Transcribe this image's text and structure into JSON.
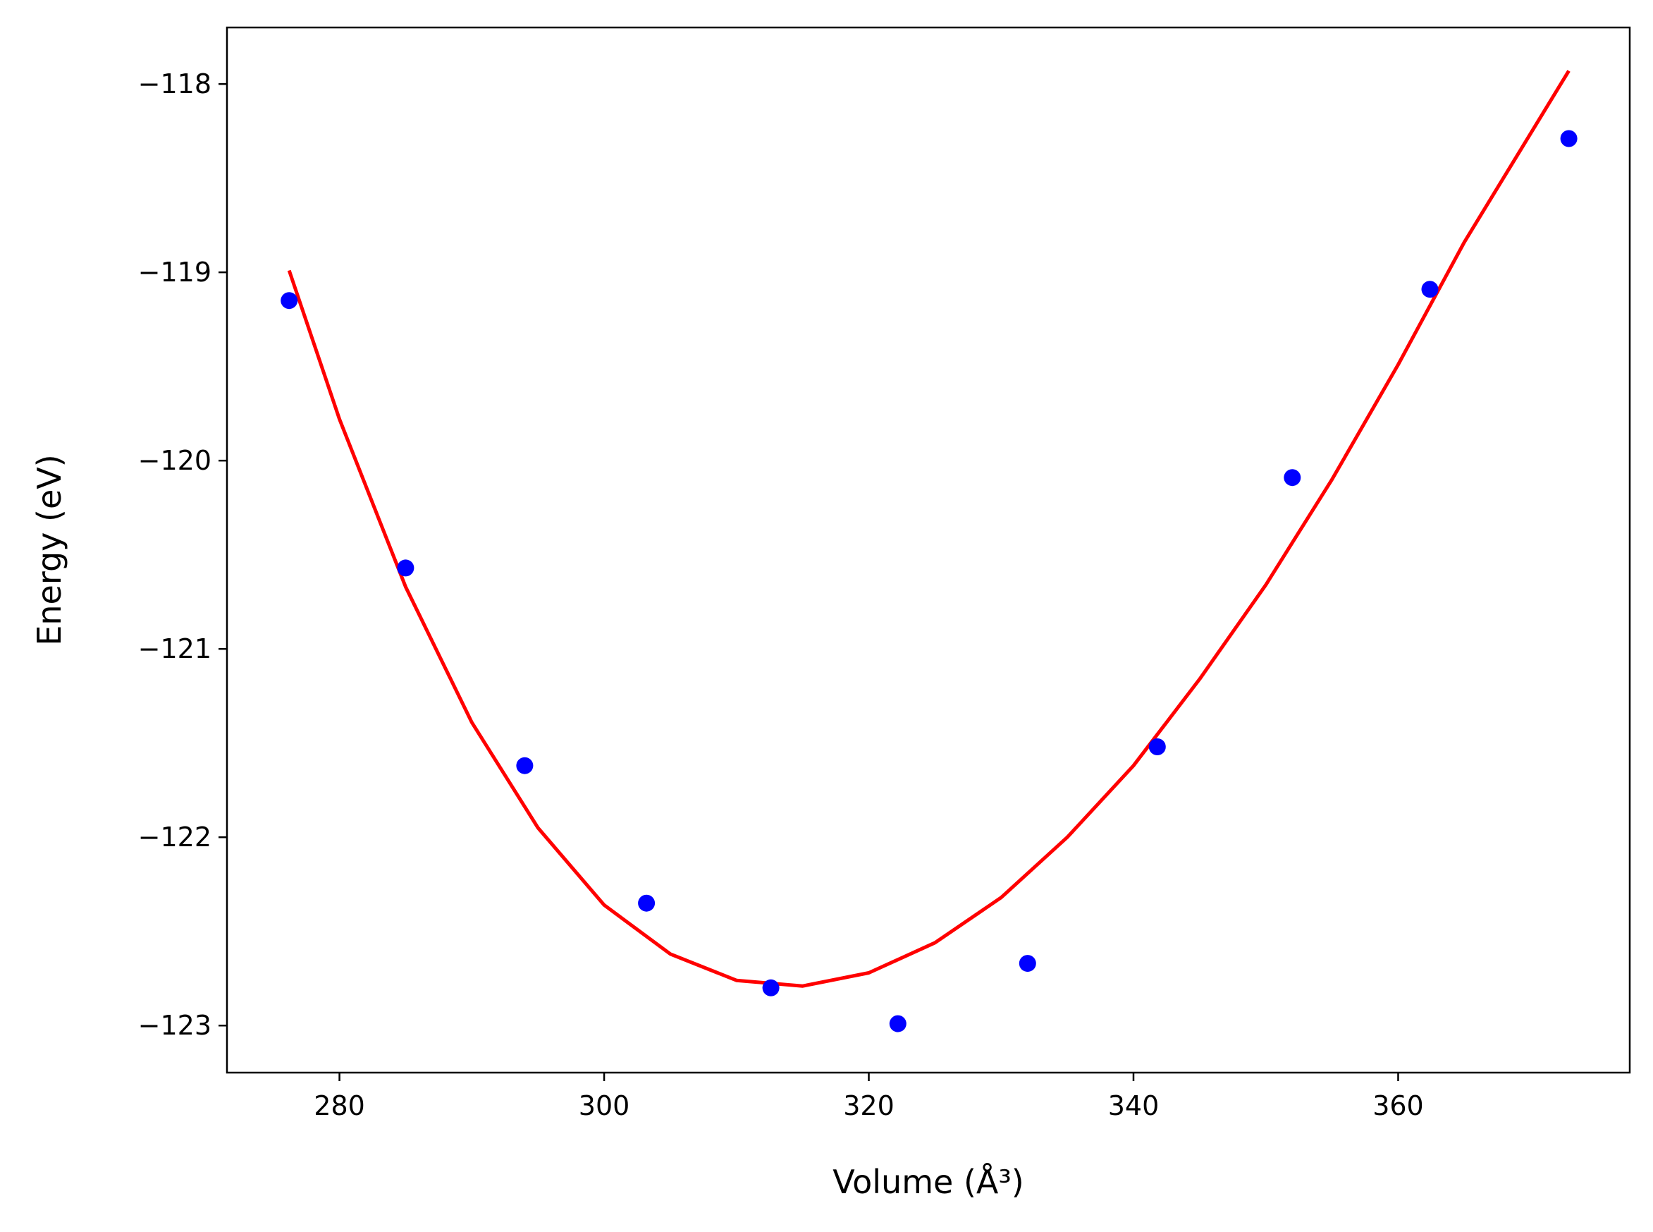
{
  "chart_data": {
    "type": "scatter",
    "xlabel": "Volume (Å³)",
    "ylabel": "Energy (eV)",
    "xlim": [
      271.5,
      377.5
    ],
    "ylim": [
      -123.25,
      -117.7
    ],
    "xticks": [
      280,
      300,
      320,
      340,
      360
    ],
    "yticks": [
      -118,
      -119,
      -120,
      -121,
      -122,
      -123
    ],
    "xtick_labels": [
      "280",
      "300",
      "320",
      "340",
      "360"
    ],
    "ytick_labels": [
      "−118",
      "−119",
      "−120",
      "−121",
      "−122",
      "−123"
    ],
    "grid": false,
    "series": [
      {
        "kind": "points",
        "color": "#0000ff",
        "x": [
          276.2,
          285.0,
          294.0,
          303.2,
          312.6,
          322.2,
          332.0,
          341.8,
          352.0,
          362.4,
          372.9
        ],
        "y": [
          -119.15,
          -120.57,
          -121.62,
          -122.35,
          -122.8,
          -122.99,
          -122.67,
          -121.52,
          -120.09,
          -119.09,
          -118.29
        ]
      },
      {
        "kind": "fit-curve",
        "color": "#ff0000",
        "x": [
          276.2,
          280,
          285,
          290,
          295,
          300,
          305,
          310,
          315,
          320,
          325,
          330,
          335,
          340,
          345,
          350,
          355,
          360,
          365,
          372.9
        ],
        "y": [
          -118.99,
          -119.78,
          -120.67,
          -121.39,
          -121.95,
          -122.36,
          -122.62,
          -122.76,
          -122.79,
          -122.72,
          -122.56,
          -122.32,
          -122.0,
          -121.62,
          -121.16,
          -120.66,
          -120.1,
          -119.49,
          -118.84,
          -117.93
        ]
      }
    ]
  }
}
